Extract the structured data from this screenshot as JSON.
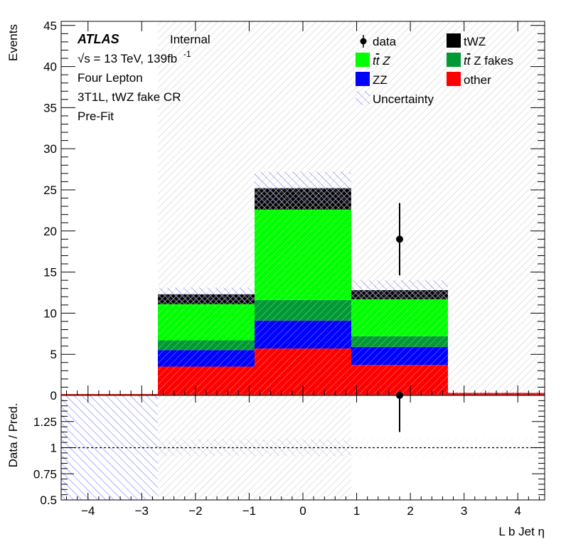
{
  "chart_data": {
    "type": "bar",
    "stacked": true,
    "annotations": {
      "experiment": "ATLAS",
      "status": "Internal",
      "energy_prefix": "√s = 13 TeV, 139fb",
      "energy_suffix": "-1",
      "lines": [
        "Four Lepton",
        "3T1L, tWZ fake CR",
        "Pre-Fit"
      ]
    },
    "x_edges": [
      -4.5,
      -2.7,
      -0.9,
      0.9,
      2.7,
      4.5
    ],
    "xlim": [
      -4.5,
      4.5
    ],
    "xlabel": "L b Jet  η",
    "x_ticks": [
      -4,
      -3,
      -2,
      -1,
      0,
      1,
      2,
      3,
      4
    ],
    "upper": {
      "ylabel": "Events",
      "ylim": [
        0,
        45.5
      ],
      "y_ticks": [
        0,
        5,
        10,
        15,
        20,
        25,
        30,
        35,
        40,
        45
      ]
    },
    "lower": {
      "ylabel": "Data / Pred.",
      "ylim": [
        0.5,
        1.5
      ],
      "y_ticks": [
        "0.5",
        "0.75",
        "1",
        "1.25"
      ],
      "y_tick_values": [
        0.5,
        0.75,
        1.0,
        1.25
      ],
      "reference_line": 1.0
    },
    "series": [
      {
        "name": "other",
        "color": "#ff0000",
        "values": [
          0,
          3.5,
          5.7,
          3.7,
          0.3
        ]
      },
      {
        "name": "ZZ",
        "color": "#0000ff",
        "values": [
          0,
          2.0,
          3.4,
          2.2,
          0
        ]
      },
      {
        "name": "t t̄ Z fakes",
        "color": "#009933",
        "values": [
          0,
          1.2,
          2.5,
          1.3,
          0
        ]
      },
      {
        "name": "t t̄ Z",
        "color": "#00ff00",
        "values": [
          0,
          4.4,
          11.0,
          4.5,
          0
        ]
      },
      {
        "name": "tWZ",
        "color": "#000000",
        "values": [
          0,
          1.2,
          2.6,
          1.1,
          0
        ]
      }
    ],
    "data": {
      "name": "data",
      "values": [
        0,
        0,
        0,
        19,
        0
      ],
      "errors": [
        0,
        0,
        0,
        4.4,
        0
      ]
    },
    "uncertainty": {
      "name": "Uncertainty",
      "total_up": [
        0,
        13.1,
        27.2,
        14.0,
        0.4
      ],
      "total_down": [
        0,
        11.5,
        23.4,
        11.8,
        0.2
      ]
    },
    "ratio": {
      "points": [
        {
          "x": 1.8,
          "value": 1.5,
          "error_low": 0.35
        }
      ],
      "band_low": [
        0.5,
        0.5,
        0.5,
        0.5,
        0.5
      ],
      "band_high": [
        1.5,
        1.5,
        1.5,
        1.5,
        1.5
      ]
    },
    "legend": {
      "placement": "top-right",
      "entries": [
        {
          "label": "data",
          "kind": "marker"
        },
        {
          "label": "tWZ",
          "kind": "fill",
          "color": "#000000"
        },
        {
          "label_pre": "t",
          "label_bar": "t",
          "label_post": " Z",
          "kind": "fill",
          "color": "#00ff00"
        },
        {
          "label_pre": "t",
          "label_bar": "t",
          "label_post": " Z fakes",
          "kind": "fill",
          "color": "#009933"
        },
        {
          "label": "ZZ",
          "kind": "fill",
          "color": "#0000ff"
        },
        {
          "label": "other",
          "kind": "fill",
          "color": "#ff0000"
        },
        {
          "label": "Uncertainty",
          "kind": "hatch"
        }
      ]
    }
  }
}
